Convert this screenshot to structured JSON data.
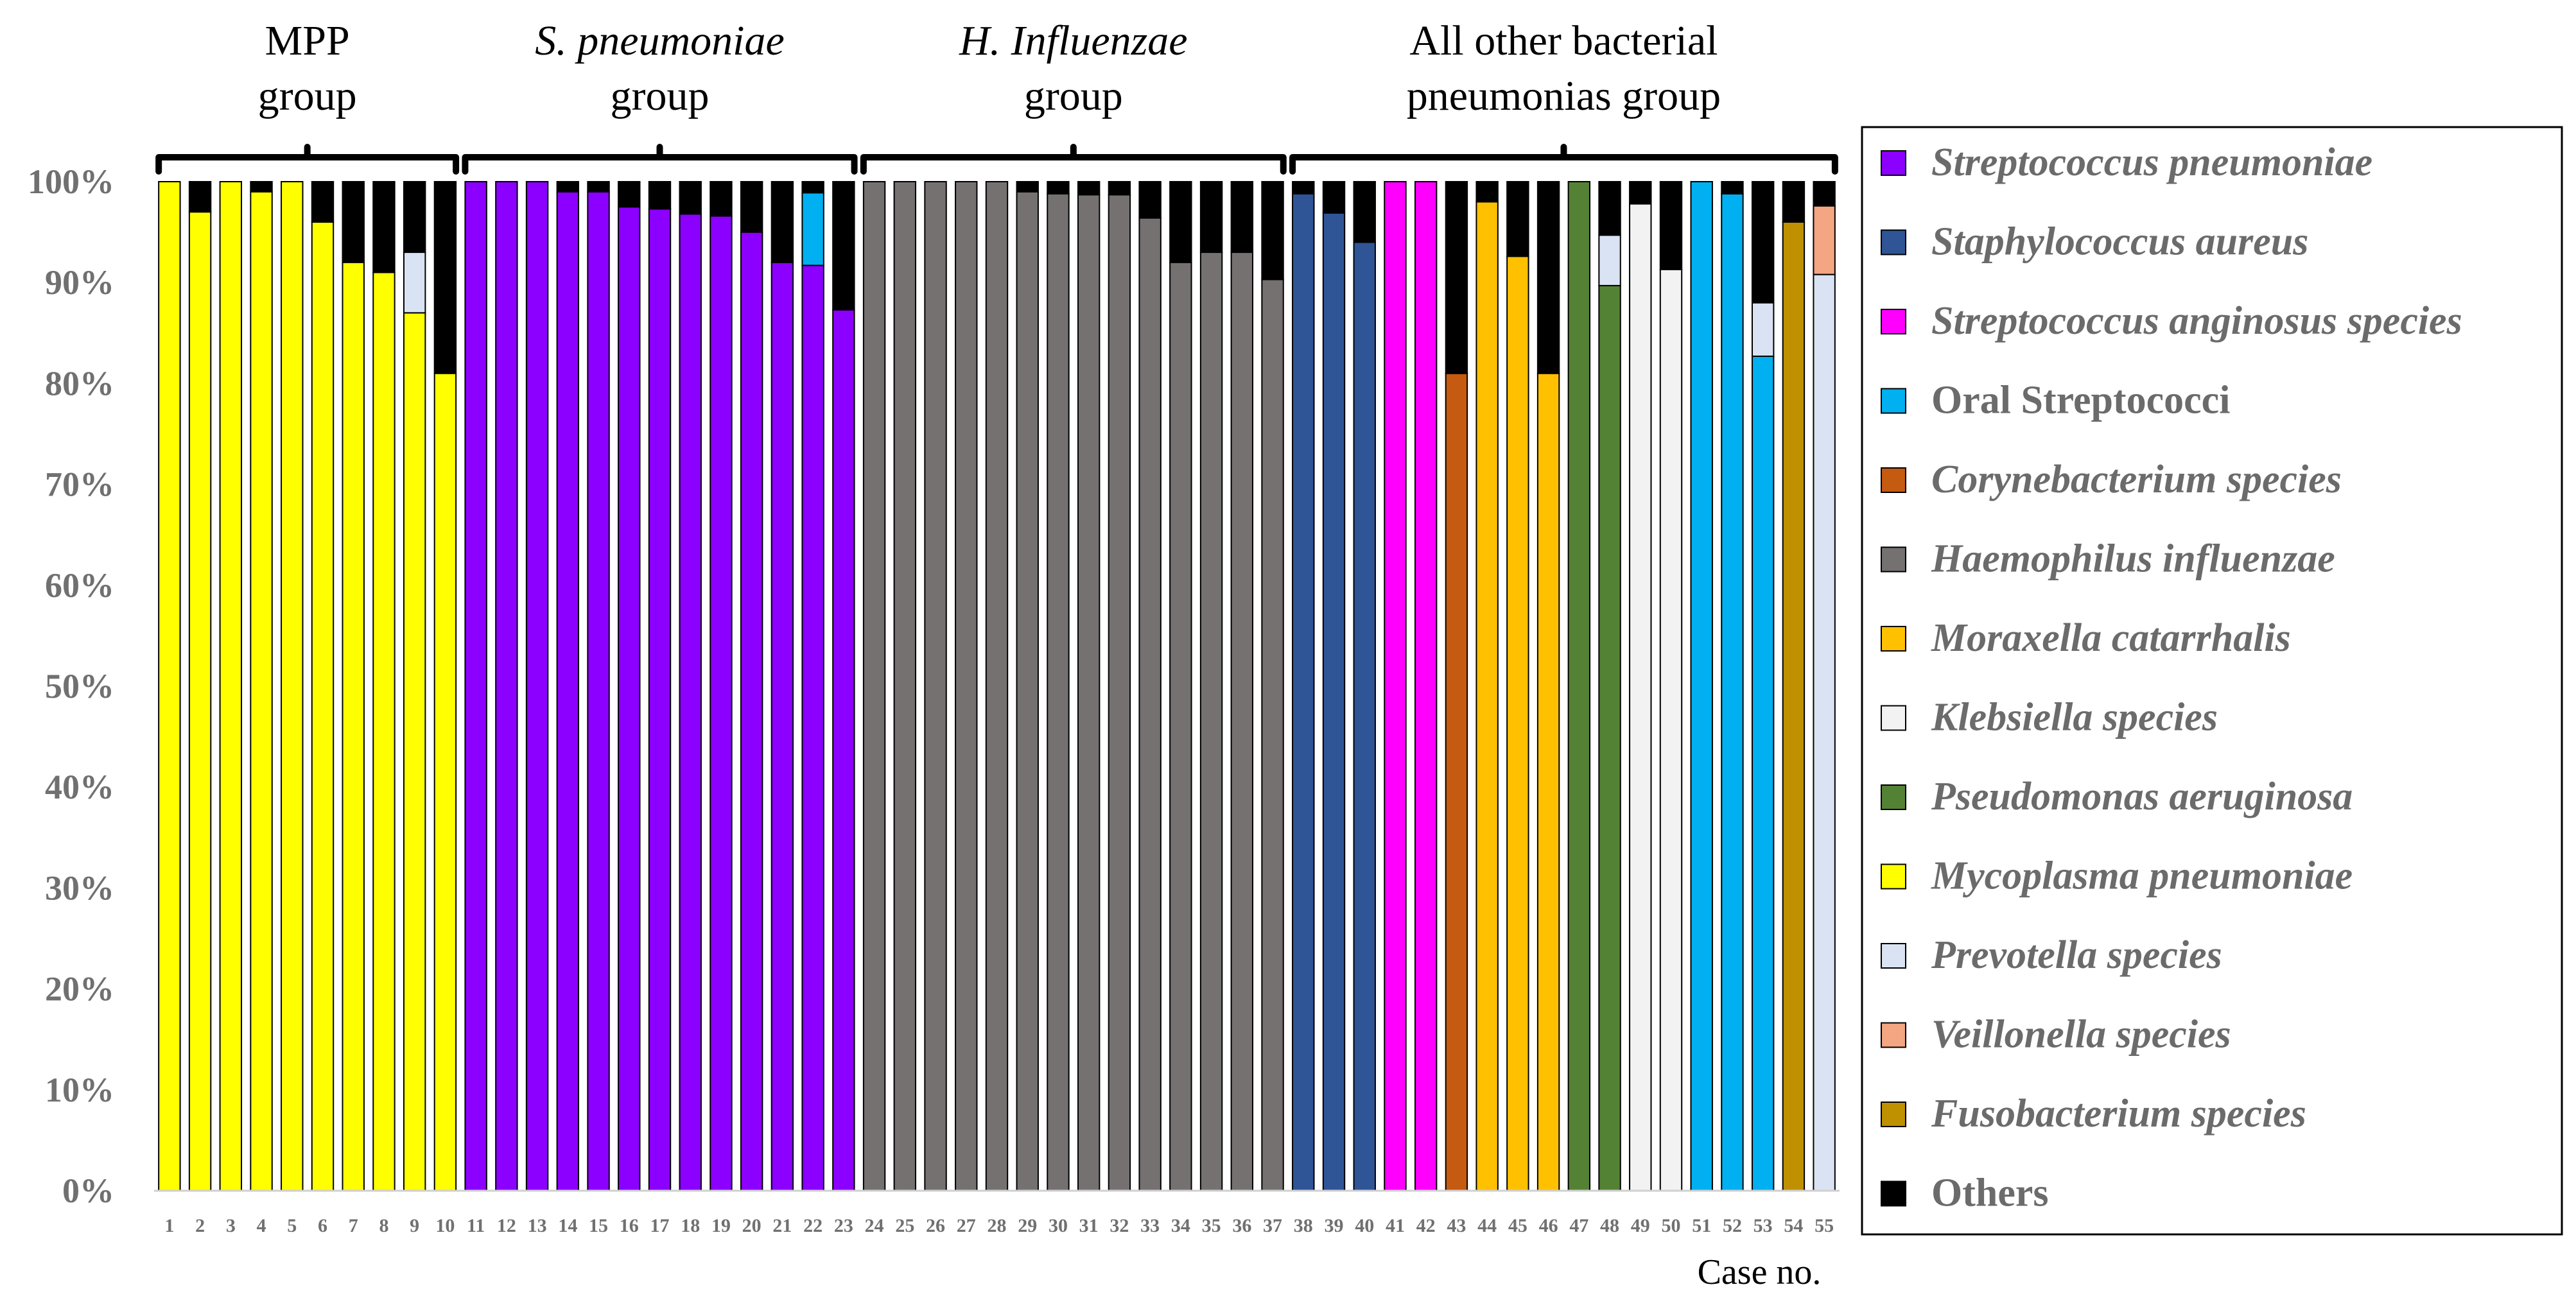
{
  "chart_data": {
    "type": "bar",
    "stacked": true,
    "title": "",
    "xlabel": "Case no.",
    "ylabel": "",
    "ylim": [
      0,
      100
    ],
    "yticks": [
      "0%",
      "10%",
      "20%",
      "30%",
      "40%",
      "50%",
      "60%",
      "70%",
      "80%",
      "90%",
      "100%"
    ],
    "grid": false,
    "legend_position": "right",
    "categories": [
      "1",
      "2",
      "3",
      "4",
      "5",
      "6",
      "7",
      "8",
      "9",
      "10",
      "11",
      "12",
      "13",
      "14",
      "15",
      "16",
      "17",
      "18",
      "19",
      "20",
      "21",
      "22",
      "23",
      "24",
      "25",
      "26",
      "27",
      "28",
      "29",
      "30",
      "31",
      "32",
      "33",
      "34",
      "35",
      "36",
      "37",
      "38",
      "39",
      "40",
      "41",
      "42",
      "43",
      "44",
      "45",
      "46",
      "47",
      "48",
      "49",
      "50",
      "51",
      "52",
      "53",
      "54",
      "55"
    ],
    "groups": [
      {
        "label_lines": [
          "MPP",
          "group"
        ],
        "label_italic": [
          false,
          false
        ],
        "from": 1,
        "to": 10
      },
      {
        "label_lines": [
          "S. pneumoniae",
          "group"
        ],
        "label_italic": [
          true,
          false
        ],
        "from": 11,
        "to": 23
      },
      {
        "label_lines": [
          "H. Influenzae",
          "group"
        ],
        "label_italic": [
          true,
          false
        ],
        "from": 24,
        "to": 37
      },
      {
        "label_lines": [
          "All other bacterial",
          "pneumonias group"
        ],
        "label_italic": [
          false,
          false
        ],
        "from": 38,
        "to": 55
      }
    ],
    "series": [
      {
        "name": "Streptococcus pneumoniae",
        "color": "#8B00FF",
        "italic": true,
        "values": [
          0,
          0,
          0,
          0,
          0,
          0,
          0,
          0,
          0,
          0,
          100,
          100,
          100,
          99,
          99,
          97.5,
          97.3,
          96.8,
          96.6,
          95,
          92,
          91.7,
          87.3,
          0,
          0,
          0,
          0,
          0,
          0,
          0,
          0,
          0,
          0,
          0,
          0,
          0,
          0,
          0,
          0,
          0,
          0,
          0,
          0,
          0,
          0,
          0,
          0,
          0,
          0,
          0,
          0,
          0,
          0,
          0,
          0
        ]
      },
      {
        "name": "Staphylococcus aureus",
        "color": "#2F5597",
        "italic": true,
        "values": [
          0,
          0,
          0,
          0,
          0,
          0,
          0,
          0,
          0,
          0,
          0,
          0,
          0,
          0,
          0,
          0,
          0,
          0,
          0,
          0,
          0,
          0,
          0,
          0,
          0,
          0,
          0,
          0,
          0,
          0,
          0,
          0,
          0,
          0,
          0,
          0,
          0,
          98.8,
          96.9,
          94,
          0,
          0,
          0,
          0,
          0,
          0,
          0,
          0,
          0,
          0,
          0,
          0,
          0,
          0,
          0
        ]
      },
      {
        "name": "Streptococcus anginosus species",
        "color": "#FF00FF",
        "italic": true,
        "values": [
          0,
          0,
          0,
          0,
          0,
          0,
          0,
          0,
          0,
          0,
          0,
          0,
          0,
          0,
          0,
          0,
          0,
          0,
          0,
          0,
          0,
          0,
          0,
          0,
          0,
          0,
          0,
          0,
          0,
          0,
          0,
          0,
          0,
          0,
          0,
          0,
          0,
          0,
          0,
          0,
          100,
          100,
          0,
          0,
          0,
          0,
          0,
          0,
          0,
          0,
          0,
          0,
          0,
          0,
          0
        ]
      },
      {
        "name": "Oral Streptococci",
        "color": "#00B0F0",
        "italic": false,
        "values": [
          0,
          0,
          0,
          0,
          0,
          0,
          0,
          0,
          0,
          0,
          0,
          0,
          0,
          0,
          0,
          0,
          0,
          0,
          0,
          0,
          0,
          7.2,
          0,
          0,
          0,
          0,
          0,
          0,
          0,
          0,
          0,
          0,
          0,
          0,
          0,
          0,
          0,
          0,
          0,
          0,
          0,
          0,
          0,
          0,
          0,
          0,
          0,
          0,
          0,
          0,
          100,
          98.8,
          82.7,
          0,
          0
        ]
      },
      {
        "name": "Corynebacterium species",
        "color": "#C55A11",
        "italic": true,
        "values": [
          0,
          0,
          0,
          0,
          0,
          0,
          0,
          0,
          0,
          0,
          0,
          0,
          0,
          0,
          0,
          0,
          0,
          0,
          0,
          0,
          0,
          0,
          0,
          0,
          0,
          0,
          0,
          0,
          0,
          0,
          0,
          0,
          0,
          0,
          0,
          0,
          0,
          0,
          0,
          0,
          0,
          0,
          81,
          0,
          0,
          0,
          0,
          0,
          0,
          0,
          0,
          0,
          0,
          0,
          0
        ]
      },
      {
        "name": "Haemophilus influenzae",
        "color": "#767171",
        "italic": true,
        "values": [
          0,
          0,
          0,
          0,
          0,
          0,
          0,
          0,
          0,
          0,
          0,
          0,
          0,
          0,
          0,
          0,
          0,
          0,
          0,
          0,
          0,
          0,
          0,
          100,
          100,
          100,
          100,
          100,
          99,
          98.8,
          98.7,
          98.7,
          96.4,
          92,
          93,
          93,
          90.3,
          0,
          0,
          0,
          0,
          0,
          0,
          0,
          0,
          0,
          0,
          0,
          0,
          0,
          0,
          0,
          0,
          0,
          0
        ]
      },
      {
        "name": "Moraxella catarrhalis",
        "color": "#FFC000",
        "italic": true,
        "values": [
          0,
          0,
          0,
          0,
          0,
          0,
          0,
          0,
          0,
          0,
          0,
          0,
          0,
          0,
          0,
          0,
          0,
          0,
          0,
          0,
          0,
          0,
          0,
          0,
          0,
          0,
          0,
          0,
          0,
          0,
          0,
          0,
          0,
          0,
          0,
          0,
          0,
          0,
          0,
          0,
          0,
          0,
          0,
          98,
          92.6,
          81,
          0,
          0,
          0,
          0,
          0,
          0,
          0,
          0,
          0
        ]
      },
      {
        "name": "Klebsiella species",
        "color": "#F2F2F2",
        "italic": true,
        "values": [
          0,
          0,
          0,
          0,
          0,
          0,
          0,
          0,
          0,
          0,
          0,
          0,
          0,
          0,
          0,
          0,
          0,
          0,
          0,
          0,
          0,
          0,
          0,
          0,
          0,
          0,
          0,
          0,
          0,
          0,
          0,
          0,
          0,
          0,
          0,
          0,
          0,
          0,
          0,
          0,
          0,
          0,
          0,
          0,
          0,
          0,
          0,
          0,
          97.8,
          91.3,
          0,
          0,
          0,
          0,
          0
        ]
      },
      {
        "name": "Pseudomonas aeruginosa",
        "color": "#548235",
        "italic": true,
        "values": [
          0,
          0,
          0,
          0,
          0,
          0,
          0,
          0,
          0,
          0,
          0,
          0,
          0,
          0,
          0,
          0,
          0,
          0,
          0,
          0,
          0,
          0,
          0,
          0,
          0,
          0,
          0,
          0,
          0,
          0,
          0,
          0,
          0,
          0,
          0,
          0,
          0,
          0,
          0,
          0,
          0,
          0,
          0,
          0,
          0,
          0,
          100,
          89.7,
          0,
          0,
          0,
          0,
          0,
          0,
          0
        ]
      },
      {
        "name": "Mycoplasma pneumoniae",
        "color": "#FFFF00",
        "italic": true,
        "values": [
          100,
          97,
          100,
          99,
          100,
          96,
          92,
          91,
          87,
          81,
          0,
          0,
          0,
          0,
          0,
          0,
          0,
          0,
          0,
          0,
          0,
          0,
          0,
          0,
          0,
          0,
          0,
          0,
          0,
          0,
          0,
          0,
          0,
          0,
          0,
          0,
          0,
          0,
          0,
          0,
          0,
          0,
          0,
          0,
          0,
          0,
          0,
          0,
          0,
          0,
          0,
          0,
          0,
          0,
          0
        ]
      },
      {
        "name": "Prevotella species",
        "color": "#DAE3F3",
        "italic": true,
        "values": [
          0,
          0,
          0,
          0,
          0,
          0,
          0,
          0,
          6,
          0,
          0,
          0,
          0,
          0,
          0,
          0,
          0,
          0,
          0,
          0,
          0,
          0,
          0,
          0,
          0,
          0,
          0,
          0,
          0,
          0,
          0,
          0,
          0,
          0,
          0,
          0,
          0,
          0,
          0,
          0,
          0,
          0,
          0,
          0,
          0,
          0,
          0,
          5,
          0,
          0,
          0,
          0,
          5.3,
          0,
          90.8
        ]
      },
      {
        "name": "Veillonella species",
        "color": "#F4A582",
        "italic": true,
        "values": [
          0,
          0,
          0,
          0,
          0,
          0,
          0,
          0,
          0,
          0,
          0,
          0,
          0,
          0,
          0,
          0,
          0,
          0,
          0,
          0,
          0,
          0,
          0,
          0,
          0,
          0,
          0,
          0,
          0,
          0,
          0,
          0,
          0,
          0,
          0,
          0,
          0,
          0,
          0,
          0,
          0,
          0,
          0,
          0,
          0,
          0,
          0,
          0,
          0,
          0,
          0,
          0,
          0,
          0,
          6.8
        ]
      },
      {
        "name": "Fusobacterium species",
        "color": "#BF9000",
        "italic": true,
        "values": [
          0,
          0,
          0,
          0,
          0,
          0,
          0,
          0,
          0,
          0,
          0,
          0,
          0,
          0,
          0,
          0,
          0,
          0,
          0,
          0,
          0,
          0,
          0,
          0,
          0,
          0,
          0,
          0,
          0,
          0,
          0,
          0,
          0,
          0,
          0,
          0,
          0,
          0,
          0,
          0,
          0,
          0,
          0,
          0,
          0,
          0,
          0,
          0,
          0,
          0,
          0,
          0,
          0,
          96,
          0
        ]
      },
      {
        "name": "Others",
        "color": "#000000",
        "italic": false,
        "values": [
          0,
          3,
          0,
          1,
          0,
          4,
          8,
          9,
          7,
          19,
          0,
          0,
          0,
          1,
          1,
          2.5,
          2.7,
          3.2,
          3.4,
          5,
          8,
          1.1,
          12.7,
          0,
          0,
          0,
          0,
          0,
          1,
          1.2,
          1.3,
          1.3,
          3.6,
          8,
          7,
          7,
          9.7,
          1.2,
          3.1,
          6,
          0,
          0,
          19,
          2,
          7.4,
          19,
          0,
          5.3,
          2.2,
          8.7,
          0,
          1.2,
          12,
          4,
          2.4
        ]
      }
    ]
  }
}
